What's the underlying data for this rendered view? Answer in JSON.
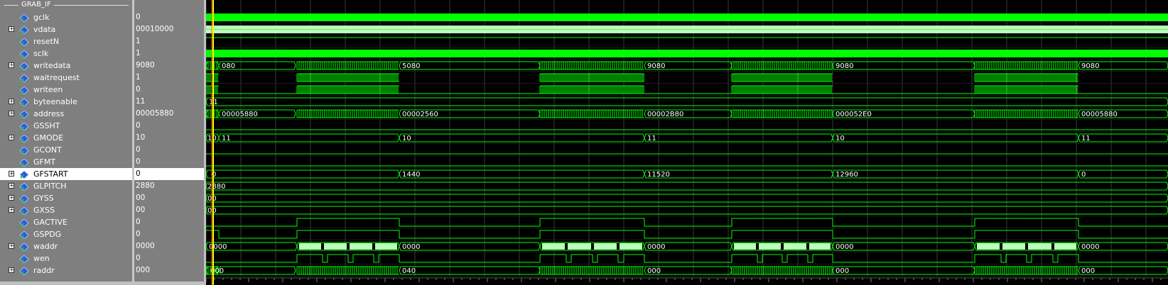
{
  "group_title": "GRAB_IF",
  "signals": [
    {
      "name": "gclk",
      "value": "0",
      "expandable": false,
      "selected": false
    },
    {
      "name": "vdata",
      "value": "00010000",
      "expandable": true,
      "selected": false
    },
    {
      "name": "resetN",
      "value": "1",
      "expandable": false,
      "selected": false
    },
    {
      "name": "sclk",
      "value": "1",
      "expandable": false,
      "selected": false
    },
    {
      "name": "writedata",
      "value": "9080",
      "expandable": true,
      "selected": false
    },
    {
      "name": "waitrequest",
      "value": "1",
      "expandable": false,
      "selected": false
    },
    {
      "name": "writeen",
      "value": "0",
      "expandable": false,
      "selected": false
    },
    {
      "name": "byteenable",
      "value": "11",
      "expandable": true,
      "selected": false
    },
    {
      "name": "address",
      "value": "00005880",
      "expandable": true,
      "selected": false
    },
    {
      "name": "GSSHT",
      "value": "0",
      "expandable": false,
      "selected": false
    },
    {
      "name": "GMODE",
      "value": "10",
      "expandable": true,
      "selected": false
    },
    {
      "name": "GCONT",
      "value": "0",
      "expandable": false,
      "selected": false
    },
    {
      "name": "GFMT",
      "value": "0",
      "expandable": false,
      "selected": false
    },
    {
      "name": "GFSTART",
      "value": "0",
      "expandable": true,
      "selected": true
    },
    {
      "name": "GLPITCH",
      "value": "2880",
      "expandable": true,
      "selected": false
    },
    {
      "name": "GYSS",
      "value": "00",
      "expandable": true,
      "selected": false
    },
    {
      "name": "GXSS",
      "value": "00",
      "expandable": true,
      "selected": false
    },
    {
      "name": "GACTIVE",
      "value": "0",
      "expandable": false,
      "selected": false
    },
    {
      "name": "GSPDG",
      "value": "0",
      "expandable": false,
      "selected": false
    },
    {
      "name": "waddr",
      "value": "0000",
      "expandable": true,
      "selected": false
    },
    {
      "name": "wen",
      "value": "0",
      "expandable": false,
      "selected": false
    },
    {
      "name": "raddr",
      "value": "000",
      "expandable": true,
      "selected": false
    }
  ],
  "wave_labels": {
    "writedata": [
      "080",
      "5080",
      "9080",
      "9080",
      "9080"
    ],
    "byteenable": [
      "11"
    ],
    "address": [
      "00005880",
      "00002560",
      "00002B80",
      "000052E0",
      "00005880"
    ],
    "GMODE": [
      "10",
      "11",
      "10",
      "11",
      "10",
      "11"
    ],
    "GFSTART": [
      "0",
      "1440",
      "11520",
      "12960",
      "0"
    ],
    "GLPITCH": [
      "2880"
    ],
    "GYSS": [
      "00"
    ],
    "GXSS": [
      "00"
    ],
    "waddr": [
      "0000",
      "0000",
      "0000",
      "0000",
      "0000"
    ],
    "raddr": [
      "000",
      "040",
      "000",
      "000",
      "000"
    ]
  },
  "colors": {
    "wave": "#00ff00",
    "selected_row": "#ffffff",
    "panel": "#7f7f7f",
    "cursor": "#ffff00",
    "marker": "#ff6a00"
  }
}
